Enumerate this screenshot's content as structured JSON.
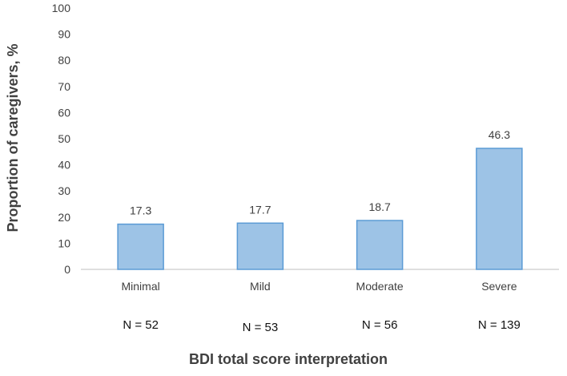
{
  "chart_data": {
    "type": "bar",
    "categories": [
      "Minimal",
      "Mild",
      "Moderate",
      "Severe"
    ],
    "values": [
      17.3,
      17.7,
      18.7,
      46.3
    ],
    "data_labels": [
      "17.3",
      "17.7",
      "18.7",
      "46.3"
    ],
    "sample_sizes": [
      "N = 52",
      "N = 53",
      "N = 56",
      "N = 139"
    ],
    "xlabel": "BDI total score interpretation",
    "ylabel": "Proportion of caregivers, %",
    "ylim": [
      0,
      100
    ],
    "yticks": [
      "0",
      "10",
      "20",
      "30",
      "40",
      "50",
      "60",
      "70",
      "80",
      "90",
      "100"
    ],
    "grid": false,
    "bar_fill": "#9dc3e6",
    "bar_stroke": "#5b9bd5"
  }
}
